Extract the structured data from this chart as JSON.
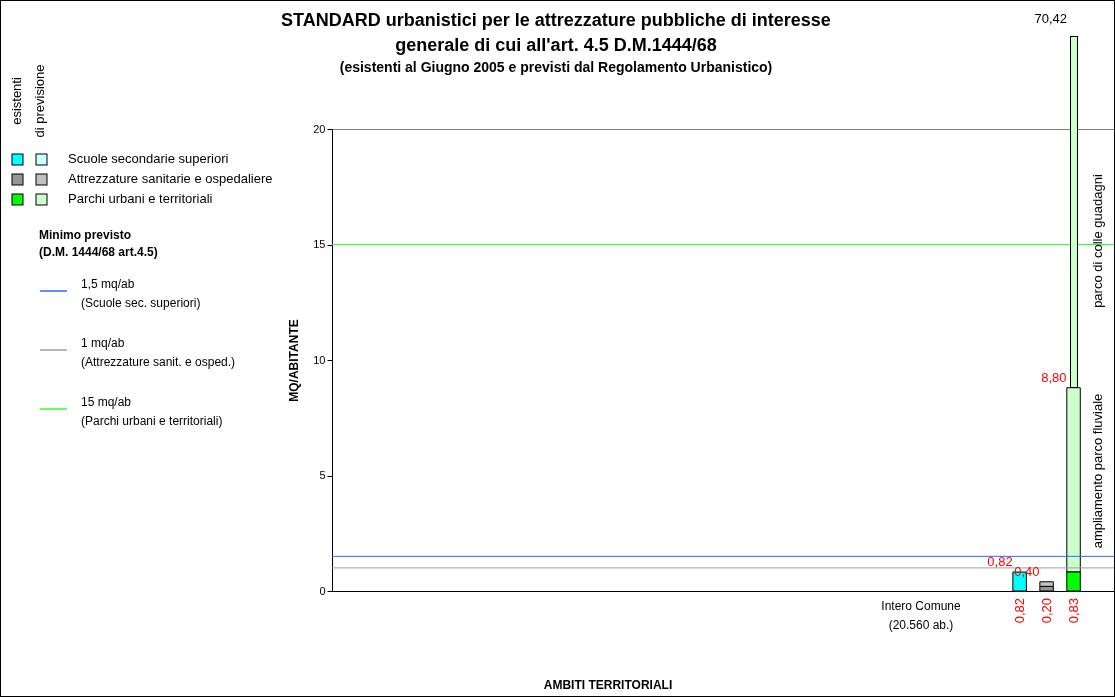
{
  "chart_data": {
    "type": "bar",
    "title": "STANDARD urbanistici per le attrezzature pubbliche di interesse\ngenerale di cui all'art. 4.5 D.M.1444/68",
    "subtitle": "(esistenti al Giugno 2005 e previsti dal Regolamento Urbanistico)",
    "ylabel": "MQ/ABITANTE",
    "categories": [
      null,
      null,
      null,
      null,
      null,
      null,
      null,
      null,
      null,
      null,
      null,
      null,
      null,
      null,
      null,
      null,
      null,
      null,
      null,
      null,
      null,
      null,
      null,
      null,
      null,
      null,
      null,
      null,
      null
    ],
    "tick_labels": "y",
    "stacked": true,
    "legend": "left",
    "grid": false,
    "series": [
      {
        "color": "#00ffff",
        "values": [
          null,
          null,
          null,
          null,
          null,
          null,
          null,
          null,
          null,
          null,
          null,
          null,
          null,
          null,
          null,
          null,
          null,
          null,
          null,
          null,
          null,
          null,
          null,
          null,
          null,
          0.82,
          null,
          null,
          null
        ],
        "value_labels": [
          null,
          null,
          null,
          null,
          null,
          null,
          null,
          null,
          null,
          null,
          null,
          null,
          null,
          null,
          null,
          null,
          null,
          null,
          null,
          null,
          null,
          null,
          null,
          null,
          null,
          "0,82",
          null,
          null,
          null
        ]
      },
      {
        "name": "Scuole secondarie superiori",
        "color": "#ccffff",
        "values": [
          null,
          null,
          null,
          null,
          null,
          null,
          null,
          null,
          null,
          null,
          null,
          null,
          null,
          null,
          null,
          null,
          null,
          null,
          null,
          null,
          null,
          null,
          null,
          null,
          null,
          null,
          null,
          null,
          null
        ]
      },
      {
        "color": "#969696",
        "values": [
          null,
          null,
          null,
          null,
          null,
          null,
          null,
          null,
          null,
          null,
          null,
          null,
          null,
          null,
          null,
          null,
          null,
          null,
          null,
          null,
          null,
          null,
          null,
          null,
          null,
          null,
          0.2,
          null,
          null
        ],
        "value_labels": [
          null,
          null,
          null,
          null,
          null,
          null,
          null,
          null,
          null,
          null,
          null,
          null,
          null,
          null,
          null,
          null,
          null,
          null,
          null,
          null,
          null,
          null,
          null,
          null,
          null,
          null,
          "0,20",
          null,
          null
        ]
      },
      {
        "name": "Attrezzature sanitarie e ospedaliere",
        "color": "#c0c0c0",
        "values": [
          null,
          null,
          null,
          null,
          null,
          null,
          null,
          null,
          null,
          null,
          null,
          null,
          null,
          null,
          null,
          null,
          null,
          null,
          null,
          null,
          null,
          null,
          null,
          null,
          null,
          null,
          0.2,
          null,
          null
        ]
      },
      {
        "color": "#00ff00",
        "values": [
          null,
          null,
          null,
          null,
          null,
          null,
          null,
          null,
          null,
          null,
          null,
          null,
          null,
          null,
          null,
          null,
          null,
          null,
          null,
          null,
          null,
          null,
          null,
          null,
          null,
          null,
          null,
          0.83,
          null
        ],
        "value_labels": [
          null,
          null,
          null,
          null,
          null,
          null,
          null,
          null,
          null,
          null,
          null,
          null,
          null,
          null,
          null,
          null,
          null,
          null,
          null,
          null,
          null,
          null,
          null,
          null,
          null,
          null,
          null,
          "0,83",
          null
        ]
      },
      {
        "name": "Parchi urbani e territoriali",
        "color": "#ccffcc",
        "values": [
          null,
          null,
          null,
          null,
          null,
          null,
          null,
          null,
          null,
          null,
          null,
          null,
          null,
          null,
          null,
          null,
          null,
          null,
          null,
          null,
          null,
          null,
          null,
          null,
          null,
          null,
          null,
          7.97,
          null
        ]
      }
    ],
    "totals": [
      null,
      null,
      null,
      null,
      null,
      null,
      null,
      null,
      null,
      null,
      null,
      null,
      null,
      null,
      null,
      null,
      null,
      null,
      null,
      null,
      null,
      null,
      null,
      null,
      null,
      "0,82",
      "0,40",
      "8,80",
      null
    ],
    "ylim": [
      0,
      20
    ],
    "yticks": [
      0,
      5,
      10,
      15,
      20
    ],
    "ref_lines": [
      {
        "axis": "y",
        "value": 1.5,
        "label": "1,5 mq/ab\n(Scuole sec. superiori)",
        "color": "#3366ff"
      },
      {
        "axis": "y",
        "value": 1,
        "label": "1 mq/ab\n(Attrezzature sanit. e osped.)",
        "color": "#a0a0a0"
      },
      {
        "axis": "y",
        "value": 15,
        "label": "15 mq/ab\n(Parchi urbani e territoriali)",
        "color": "#33ff33"
      }
    ],
    "annotations": [
      "Intero Comune\n(20.560 ab.)",
      "esistenti",
      "di previsione",
      "Minimo previsto",
      "(D.M. 1444/68 art.4.5)",
      "ampliamento parco fluviale",
      "parco di colle guadagni",
      "70,42",
      "AMBITI TERRITORIALI"
    ]
  }
}
